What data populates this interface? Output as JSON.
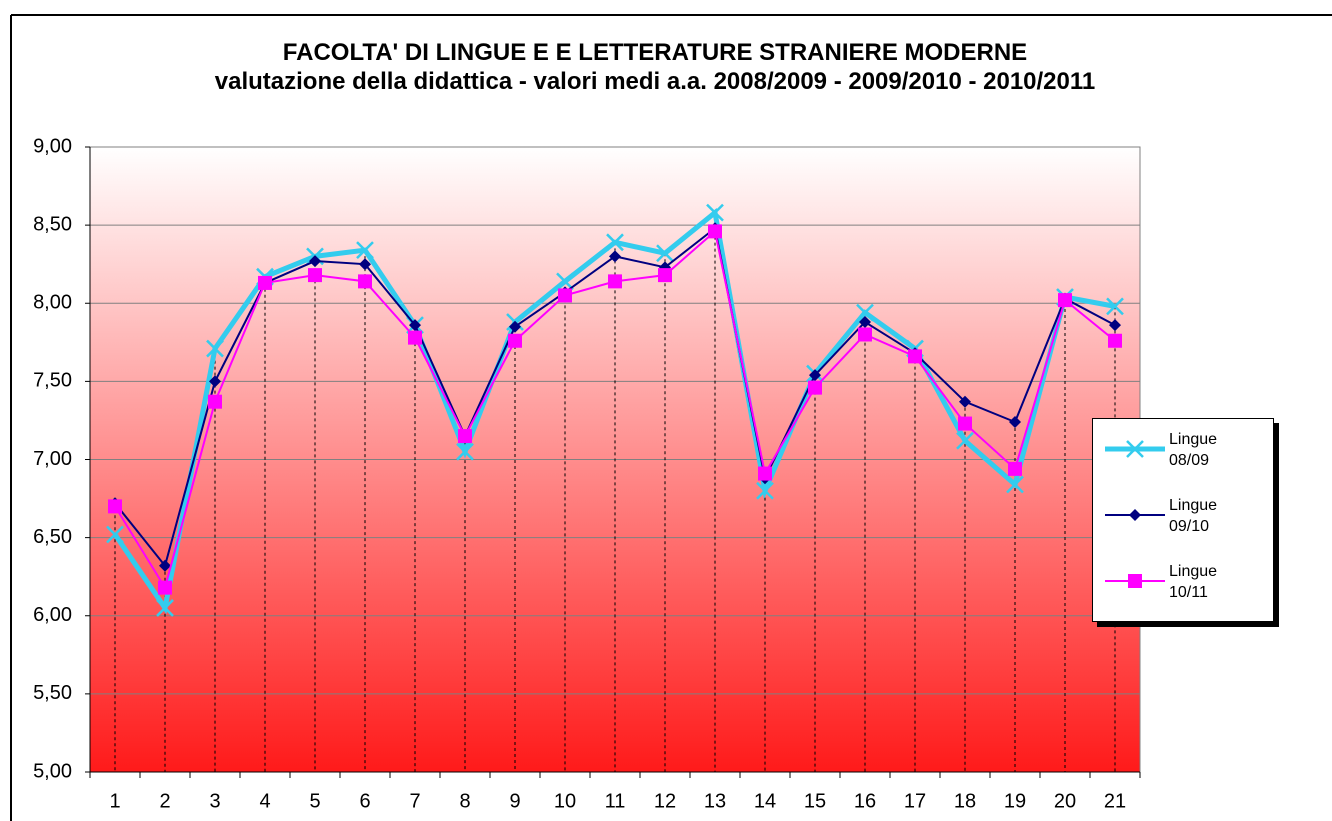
{
  "chart_data": {
    "type": "line",
    "title": "FACOLTA' DI LINGUE E E LETTERATURE STRANIERE MODERNE",
    "subtitle": "valutazione della didattica - valori medi a.a. 2008/2009 - 2009/2010 - 2010/2011",
    "categories": [
      "1",
      "2",
      "3",
      "4",
      "5",
      "6",
      "7",
      "8",
      "9",
      "10",
      "11",
      "12",
      "13",
      "14",
      "15",
      "16",
      "17",
      "18",
      "19",
      "20",
      "21"
    ],
    "series": [
      {
        "name": "Lingue 08/09",
        "color": "#33ccee",
        "values": [
          6.52,
          6.05,
          7.71,
          8.17,
          8.3,
          8.34,
          7.86,
          7.05,
          7.88,
          8.14,
          8.39,
          8.32,
          8.58,
          6.8,
          7.55,
          7.94,
          7.71,
          7.12,
          6.84,
          8.04,
          7.98
        ]
      },
      {
        "name": "Lingue 09/10",
        "color": "#000080",
        "values": [
          6.72,
          6.32,
          7.5,
          8.13,
          8.27,
          8.25,
          7.86,
          7.15,
          7.85,
          8.07,
          8.3,
          8.23,
          8.48,
          6.88,
          7.54,
          7.88,
          7.68,
          7.37,
          7.24,
          8.03,
          7.86
        ]
      },
      {
        "name": "Lingue 10/11",
        "color": "#ff00ff",
        "values": [
          6.7,
          6.18,
          7.37,
          8.13,
          8.18,
          8.14,
          7.78,
          7.15,
          7.76,
          8.05,
          8.14,
          8.18,
          8.46,
          6.91,
          7.46,
          7.8,
          7.66,
          7.23,
          6.94,
          8.02,
          7.76
        ]
      }
    ],
    "ylim": [
      5,
      9
    ],
    "yticks": [
      {
        "value": 5,
        "label": "5,00"
      },
      {
        "value": 5.5,
        "label": "5,50"
      },
      {
        "value": 6,
        "label": "6,00"
      },
      {
        "value": 6.5,
        "label": "6,50"
      },
      {
        "value": 7,
        "label": "7,00"
      },
      {
        "value": 7.5,
        "label": "7,50"
      },
      {
        "value": 8,
        "label": "8,00"
      },
      {
        "value": 8.5,
        "label": "8,50"
      },
      {
        "value": 9,
        "label": "9,00"
      }
    ],
    "grid": true,
    "legend": "right"
  }
}
